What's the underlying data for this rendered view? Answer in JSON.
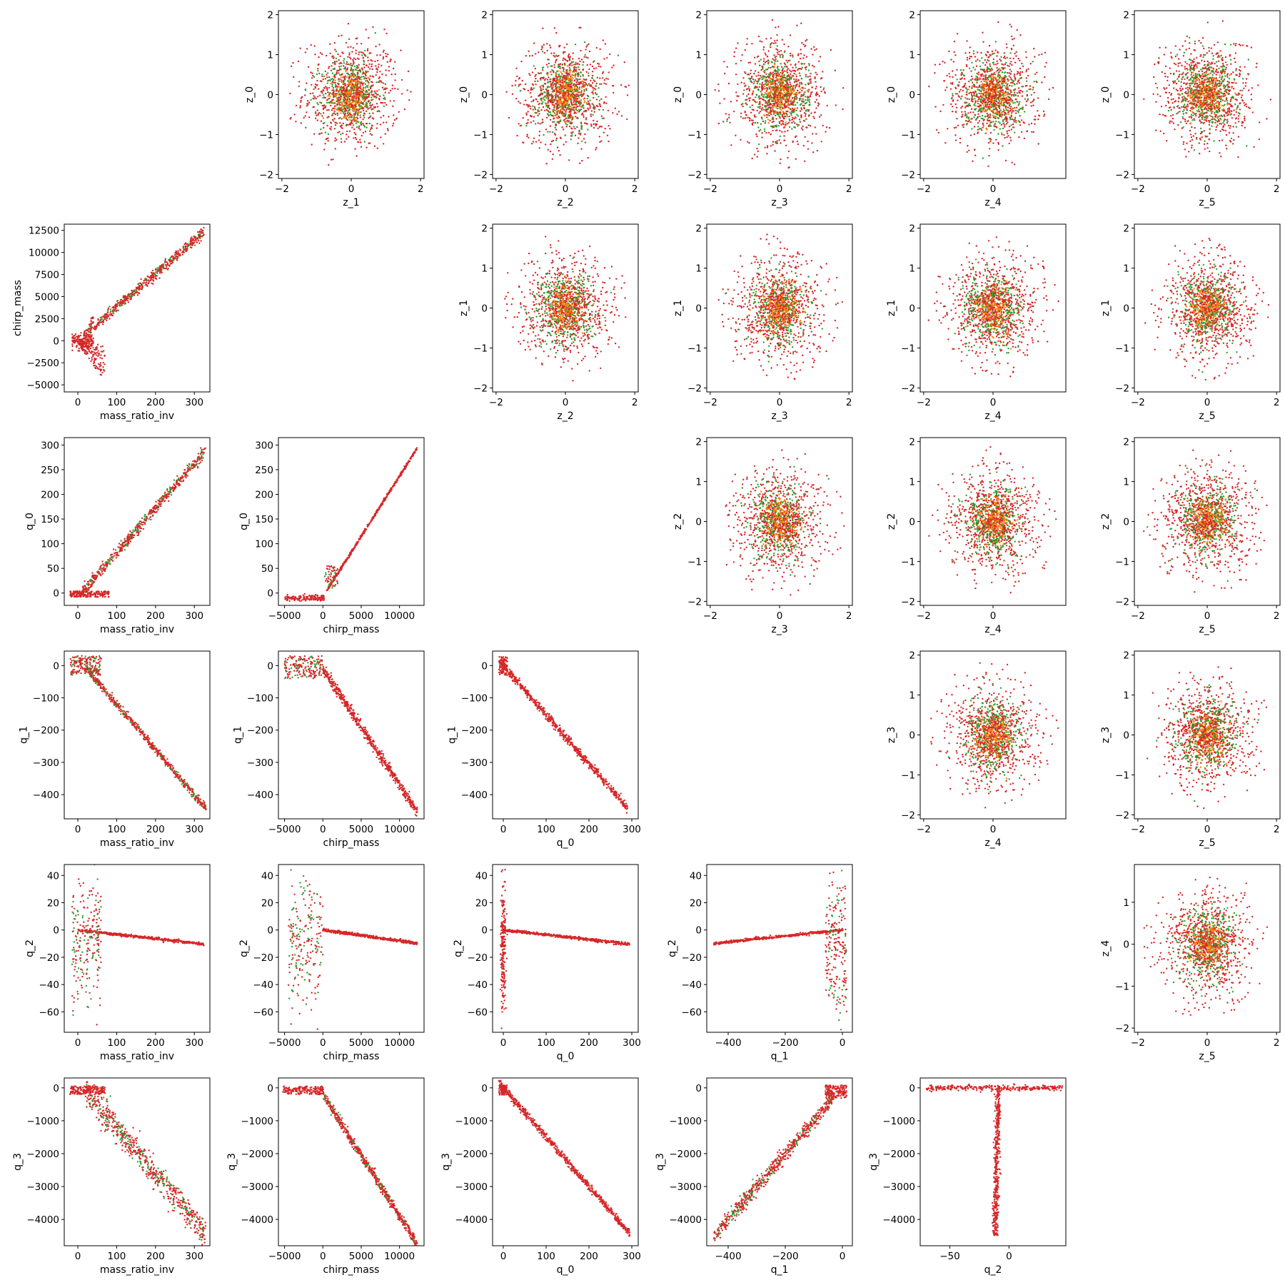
{
  "colors": {
    "red": "#d62728",
    "green": "#2ca02c",
    "orange": "#ff7f0e",
    "frame": "#000000"
  },
  "chart_data": [
    {
      "type": "scatter",
      "row": 0,
      "col": 1,
      "xlabel": "z_1",
      "ylabel": "z_0",
      "xlim": [
        -2.1,
        2.1
      ],
      "ylim": [
        -2.1,
        2.1
      ],
      "xticks": [
        -2,
        0,
        2
      ],
      "yticks": [
        -2,
        -1,
        0,
        1,
        2
      ],
      "kind": "latent"
    },
    {
      "type": "scatter",
      "row": 0,
      "col": 2,
      "xlabel": "z_2",
      "ylabel": "z_0",
      "xlim": [
        -2.1,
        2.1
      ],
      "ylim": [
        -2.1,
        2.1
      ],
      "xticks": [
        -2,
        0,
        2
      ],
      "yticks": [
        -2,
        -1,
        0,
        1,
        2
      ],
      "kind": "latent"
    },
    {
      "type": "scatter",
      "row": 0,
      "col": 3,
      "xlabel": "z_3",
      "ylabel": "z_0",
      "xlim": [
        -2.1,
        2.1
      ],
      "ylim": [
        -2.1,
        2.1
      ],
      "xticks": [
        -2,
        0,
        2
      ],
      "yticks": [
        -2,
        -1,
        0,
        1,
        2
      ],
      "kind": "latent"
    },
    {
      "type": "scatter",
      "row": 0,
      "col": 4,
      "xlabel": "z_4",
      "ylabel": "z_0",
      "xlim": [
        -2.1,
        2.1
      ],
      "ylim": [
        -2.1,
        2.1
      ],
      "xticks": [
        -2,
        0
      ],
      "yticks": [
        -2,
        -1,
        0,
        1,
        2
      ],
      "kind": "latent"
    },
    {
      "type": "scatter",
      "row": 0,
      "col": 5,
      "xlabel": "z_5",
      "ylabel": "z_0",
      "xlim": [
        -2.1,
        2.1
      ],
      "ylim": [
        -2.1,
        2.1
      ],
      "xticks": [
        -2,
        0,
        2
      ],
      "yticks": [
        -2,
        -1,
        0,
        1,
        2
      ],
      "kind": "latent"
    },
    {
      "type": "scatter",
      "row": 1,
      "col": 0,
      "xlabel": "mass_ratio_inv",
      "ylabel": "chirp_mass",
      "xlim": [
        -35,
        340
      ],
      "ylim": [
        -5800,
        13200
      ],
      "xticks": [
        0,
        100,
        200,
        300
      ],
      "yticks": [
        -5000,
        -2500,
        0,
        2500,
        5000,
        7500,
        10000,
        12500
      ],
      "kind": "mr_cm"
    },
    {
      "type": "scatter",
      "row": 1,
      "col": 2,
      "xlabel": "z_2",
      "ylabel": "z_1",
      "xlim": [
        -2.1,
        2.1
      ],
      "ylim": [
        -2.1,
        2.1
      ],
      "xticks": [
        -2,
        0,
        2
      ],
      "yticks": [
        -2,
        -1,
        0,
        1,
        2
      ],
      "kind": "latent"
    },
    {
      "type": "scatter",
      "row": 1,
      "col": 3,
      "xlabel": "z_3",
      "ylabel": "z_1",
      "xlim": [
        -2.1,
        2.1
      ],
      "ylim": [
        -2.1,
        2.1
      ],
      "xticks": [
        -2,
        0,
        2
      ],
      "yticks": [
        -2,
        -1,
        0,
        1,
        2
      ],
      "kind": "latent"
    },
    {
      "type": "scatter",
      "row": 1,
      "col": 4,
      "xlabel": "z_4",
      "ylabel": "z_1",
      "xlim": [
        -2.1,
        2.1
      ],
      "ylim": [
        -2.1,
        2.1
      ],
      "xticks": [
        -2,
        0
      ],
      "yticks": [
        -2,
        -1,
        0,
        1,
        2
      ],
      "kind": "latent"
    },
    {
      "type": "scatter",
      "row": 1,
      "col": 5,
      "xlabel": "z_5",
      "ylabel": "z_1",
      "xlim": [
        -2.1,
        2.1
      ],
      "ylim": [
        -2.1,
        2.1
      ],
      "xticks": [
        -2,
        0,
        2
      ],
      "yticks": [
        -2,
        -1,
        0,
        1,
        2
      ],
      "kind": "latent"
    },
    {
      "type": "scatter",
      "row": 2,
      "col": 0,
      "xlabel": "mass_ratio_inv",
      "ylabel": "q_0",
      "xlim": [
        -35,
        340
      ],
      "ylim": [
        -25,
        315
      ],
      "xticks": [
        0,
        100,
        200,
        300
      ],
      "yticks": [
        0,
        50,
        100,
        150,
        200,
        250,
        300
      ],
      "kind": "mr_q0"
    },
    {
      "type": "scatter",
      "row": 2,
      "col": 1,
      "xlabel": "chirp_mass",
      "ylabel": "q_0",
      "xlim": [
        -5800,
        13200
      ],
      "ylim": [
        -25,
        315
      ],
      "xticks": [
        -5000,
        0,
        5000,
        10000
      ],
      "yticks": [
        0,
        50,
        100,
        150,
        200,
        250,
        300
      ],
      "kind": "cm_q0"
    },
    {
      "type": "scatter",
      "row": 2,
      "col": 3,
      "xlabel": "z_3",
      "ylabel": "z_2",
      "xlim": [
        -2.1,
        2.1
      ],
      "ylim": [
        -2.1,
        2.1
      ],
      "xticks": [
        -2,
        0,
        2
      ],
      "yticks": [
        -2,
        -1,
        0,
        1,
        2
      ],
      "kind": "latent"
    },
    {
      "type": "scatter",
      "row": 2,
      "col": 4,
      "xlabel": "z_4",
      "ylabel": "z_2",
      "xlim": [
        -2.1,
        2.1
      ],
      "ylim": [
        -2.1,
        2.1
      ],
      "xticks": [
        -2,
        0
      ],
      "yticks": [
        -2,
        -1,
        0,
        1,
        2
      ],
      "kind": "latent"
    },
    {
      "type": "scatter",
      "row": 2,
      "col": 5,
      "xlabel": "z_5",
      "ylabel": "z_2",
      "xlim": [
        -2.1,
        2.1
      ],
      "ylim": [
        -2.1,
        2.1
      ],
      "xticks": [
        -2,
        0,
        2
      ],
      "yticks": [
        -2,
        -1,
        0,
        1,
        2
      ],
      "kind": "latent"
    },
    {
      "type": "scatter",
      "row": 3,
      "col": 0,
      "xlabel": "mass_ratio_inv",
      "ylabel": "q_1",
      "xlim": [
        -35,
        340
      ],
      "ylim": [
        -475,
        45
      ],
      "xticks": [
        0,
        100,
        200,
        300
      ],
      "yticks": [
        -400,
        -300,
        -200,
        -100,
        0
      ],
      "kind": "mr_q1"
    },
    {
      "type": "scatter",
      "row": 3,
      "col": 1,
      "xlabel": "chirp_mass",
      "ylabel": "q_1",
      "xlim": [
        -5800,
        13200
      ],
      "ylim": [
        -475,
        45
      ],
      "xticks": [
        -5000,
        0,
        5000,
        10000
      ],
      "yticks": [
        -400,
        -300,
        -200,
        -100,
        0
      ],
      "kind": "cm_q1"
    },
    {
      "type": "scatter",
      "row": 3,
      "col": 2,
      "xlabel": "q_0",
      "ylabel": "q_1",
      "xlim": [
        -25,
        315
      ],
      "ylim": [
        -475,
        45
      ],
      "xticks": [
        0,
        100,
        200,
        300
      ],
      "yticks": [
        -400,
        -300,
        -200,
        -100,
        0
      ],
      "kind": "q0_q1"
    },
    {
      "type": "scatter",
      "row": 3,
      "col": 4,
      "xlabel": "z_4",
      "ylabel": "z_3",
      "xlim": [
        -2.1,
        2.1
      ],
      "ylim": [
        -2.1,
        2.1
      ],
      "xticks": [
        -2,
        0
      ],
      "yticks": [
        -2,
        -1,
        0,
        1,
        2
      ],
      "kind": "latent"
    },
    {
      "type": "scatter",
      "row": 3,
      "col": 5,
      "xlabel": "z_5",
      "ylabel": "z_3",
      "xlim": [
        -2.1,
        2.1
      ],
      "ylim": [
        -2.1,
        2.1
      ],
      "xticks": [
        -2,
        0,
        2
      ],
      "yticks": [
        -2,
        -1,
        0,
        1,
        2
      ],
      "kind": "latent"
    },
    {
      "type": "scatter",
      "row": 4,
      "col": 0,
      "xlabel": "mass_ratio_inv",
      "ylabel": "q_2",
      "xlim": [
        -35,
        340
      ],
      "ylim": [
        -75,
        48
      ],
      "xticks": [
        0,
        100,
        200,
        300
      ],
      "yticks": [
        -60,
        -40,
        -20,
        0,
        20,
        40
      ],
      "kind": "mr_q2"
    },
    {
      "type": "scatter",
      "row": 4,
      "col": 1,
      "xlabel": "chirp_mass",
      "ylabel": "q_2",
      "xlim": [
        -5800,
        13200
      ],
      "ylim": [
        -75,
        48
      ],
      "xticks": [
        -5000,
        0,
        5000,
        10000
      ],
      "yticks": [
        -60,
        -40,
        -20,
        0,
        20,
        40
      ],
      "kind": "cm_q2"
    },
    {
      "type": "scatter",
      "row": 4,
      "col": 2,
      "xlabel": "q_0",
      "ylabel": "q_2",
      "xlim": [
        -25,
        315
      ],
      "ylim": [
        -75,
        48
      ],
      "xticks": [
        0,
        100,
        200,
        300
      ],
      "yticks": [
        -60,
        -40,
        -20,
        0,
        20,
        40
      ],
      "kind": "q0_q2"
    },
    {
      "type": "scatter",
      "row": 4,
      "col": 3,
      "xlabel": "q_1",
      "ylabel": "q_2",
      "xlim": [
        -475,
        35
      ],
      "ylim": [
        -75,
        48
      ],
      "xticks": [
        -400,
        -200,
        0
      ],
      "yticks": [
        -60,
        -40,
        -20,
        0,
        20,
        40
      ],
      "kind": "q1_q2"
    },
    {
      "type": "scatter",
      "row": 4,
      "col": 5,
      "xlabel": "z_5",
      "ylabel": "z_4",
      "xlim": [
        -2.1,
        2.1
      ],
      "ylim": [
        -2.1,
        1.9
      ],
      "xticks": [
        -2,
        0,
        2
      ],
      "yticks": [
        -2,
        -1,
        0,
        1
      ],
      "kind": "latent"
    },
    {
      "type": "scatter",
      "row": 5,
      "col": 0,
      "xlabel": "mass_ratio_inv",
      "ylabel": "q_3",
      "xlim": [
        -35,
        340
      ],
      "ylim": [
        -4800,
        300
      ],
      "xticks": [
        0,
        100,
        200,
        300
      ],
      "yticks": [
        -4000,
        -3000,
        -2000,
        -1000,
        0
      ],
      "kind": "mr_q3"
    },
    {
      "type": "scatter",
      "row": 5,
      "col": 1,
      "xlabel": "chirp_mass",
      "ylabel": "q_3",
      "xlim": [
        -5800,
        13200
      ],
      "ylim": [
        -4800,
        300
      ],
      "xticks": [
        -5000,
        0,
        5000,
        10000
      ],
      "yticks": [
        -4000,
        -3000,
        -2000,
        -1000,
        0
      ],
      "kind": "cm_q3"
    },
    {
      "type": "scatter",
      "row": 5,
      "col": 2,
      "xlabel": "q_0",
      "ylabel": "q_3",
      "xlim": [
        -25,
        315
      ],
      "ylim": [
        -4800,
        300
      ],
      "xticks": [
        0,
        100,
        200,
        300
      ],
      "yticks": [
        -4000,
        -3000,
        -2000,
        -1000,
        0
      ],
      "kind": "q0_q3"
    },
    {
      "type": "scatter",
      "row": 5,
      "col": 3,
      "xlabel": "q_1",
      "ylabel": "q_3",
      "xlim": [
        -475,
        35
      ],
      "ylim": [
        -4800,
        300
      ],
      "xticks": [
        -400,
        -200,
        0
      ],
      "yticks": [
        -4000,
        -3000,
        -2000,
        -1000,
        0
      ],
      "kind": "q1_q3"
    },
    {
      "type": "scatter",
      "row": 5,
      "col": 4,
      "xlabel": "q_2",
      "ylabel": "q_3",
      "xlim": [
        -75,
        48
      ],
      "ylim": [
        -4800,
        300
      ],
      "xticks": [
        -50,
        0
      ],
      "yticks": [
        -4000,
        -3000,
        -2000,
        -1000,
        0
      ],
      "kind": "q2_q3"
    }
  ]
}
